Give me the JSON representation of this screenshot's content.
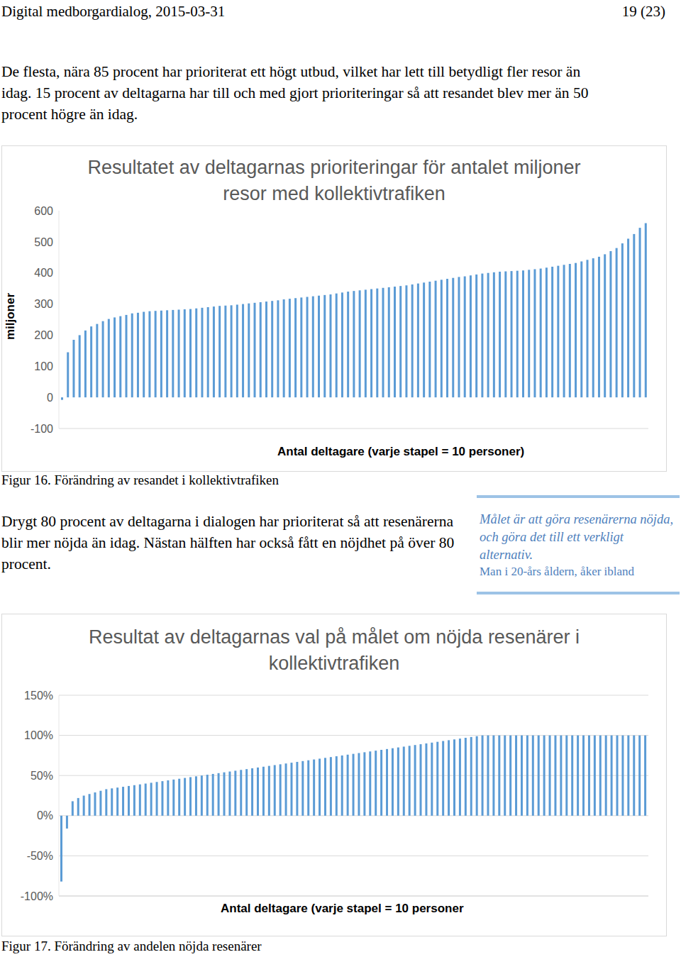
{
  "header": {
    "left": "Digital medborgardialog, 2015-03-31",
    "right": "19 (23)"
  },
  "paragraphs": [
    "De flesta, nära 85 procent har prioriterat ett högt utbud, vilket har lett till betydligt fler resor än idag. 15 procent av deltagarna har till och med gjort prioriteringar så att resandet blev mer än 50 procent högre än idag.",
    "Drygt 80 procent av deltagarna i dialogen har prioriterat så att resenärerna blir mer nöjda än idag. Nästan hälften har också fått en nöjdhet på över 80 procent."
  ],
  "quote": {
    "text": "Målet är att göra resenärerna nöjda, och göra det till ett verkligt alternativ.",
    "author": "Man i 20-års åldern, åker ibland"
  },
  "captions": [
    "Figur 16. Förändring av resandet i kollektivtrafiken",
    "Figur 17. Förändring av andelen nöjda resenärer"
  ],
  "chart_data": [
    {
      "type": "bar",
      "title": "Resultatet av deltagarnas prioriteringar för antalet miljoner resor med kollektivtrafiken",
      "xlabel": "Antal deltagare (varje stapel = 10 personer)",
      "ylabel": "miljoner",
      "color": "#5b9bd5",
      "grid": false,
      "tick_labels": "y",
      "ylim": [
        -100,
        600
      ],
      "yticks": [
        -100,
        0,
        100,
        200,
        300,
        400,
        500,
        600
      ],
      "values": [
        -8,
        145,
        185,
        200,
        215,
        228,
        236,
        245,
        252,
        257,
        261,
        265,
        270,
        272,
        275,
        277,
        278,
        279,
        280,
        281,
        282,
        283,
        284,
        286,
        288,
        290,
        292,
        294,
        295,
        296,
        298,
        300,
        302,
        304,
        306,
        308,
        310,
        312,
        315,
        317,
        319,
        321,
        323,
        325,
        327,
        329,
        331,
        334,
        337,
        340,
        342,
        344,
        346,
        348,
        350,
        352,
        354,
        356,
        358,
        360,
        363,
        366,
        369,
        372,
        375,
        378,
        381,
        384,
        387,
        389,
        392,
        395,
        398,
        400,
        402,
        404,
        405,
        406,
        407,
        408,
        410,
        412,
        414,
        417,
        420,
        423,
        426,
        429,
        432,
        437,
        442,
        447,
        452,
        460,
        470,
        480,
        495,
        510,
        525,
        545,
        560
      ]
    },
    {
      "type": "bar",
      "title": "Resultat av deltagarnas val på målet om nöjda resenärer i kollektivtrafiken",
      "xlabel": "Antal deltagare (varje stapel = 10 personer",
      "color": "#5b9bd5",
      "grid": true,
      "tick_labels": "y",
      "ylim": [
        -100,
        150
      ],
      "yticks": [
        {
          "value": -100,
          "label": "-100%"
        },
        {
          "value": -50,
          "label": "-50%"
        },
        {
          "value": 0,
          "label": "0%"
        },
        {
          "value": 50,
          "label": "50%"
        },
        {
          "value": 100,
          "label": "100%"
        },
        {
          "value": 150,
          "label": "150%"
        }
      ],
      "values": [
        -82,
        -16,
        18,
        22,
        25,
        27,
        29,
        31,
        33,
        34,
        35,
        36,
        37,
        38,
        39,
        40,
        41,
        42,
        43,
        44,
        45,
        46,
        47,
        48,
        49,
        50,
        51,
        52,
        53,
        54,
        55,
        56,
        57,
        58,
        59,
        60,
        61,
        62,
        63,
        64,
        65,
        66,
        67,
        68,
        69,
        70,
        71,
        72,
        73,
        74,
        75,
        76,
        77,
        78,
        79,
        80,
        81,
        82,
        83,
        84,
        85,
        86,
        87,
        88,
        89,
        90,
        91,
        92,
        93,
        94,
        95,
        96,
        97,
        98,
        99,
        100,
        100,
        100,
        100,
        100,
        100,
        100,
        100,
        100,
        100,
        100,
        100,
        100,
        100,
        100,
        100,
        100,
        100,
        100,
        100,
        100,
        100,
        100,
        100,
        100,
        100,
        100,
        100,
        100,
        100
      ]
    }
  ]
}
